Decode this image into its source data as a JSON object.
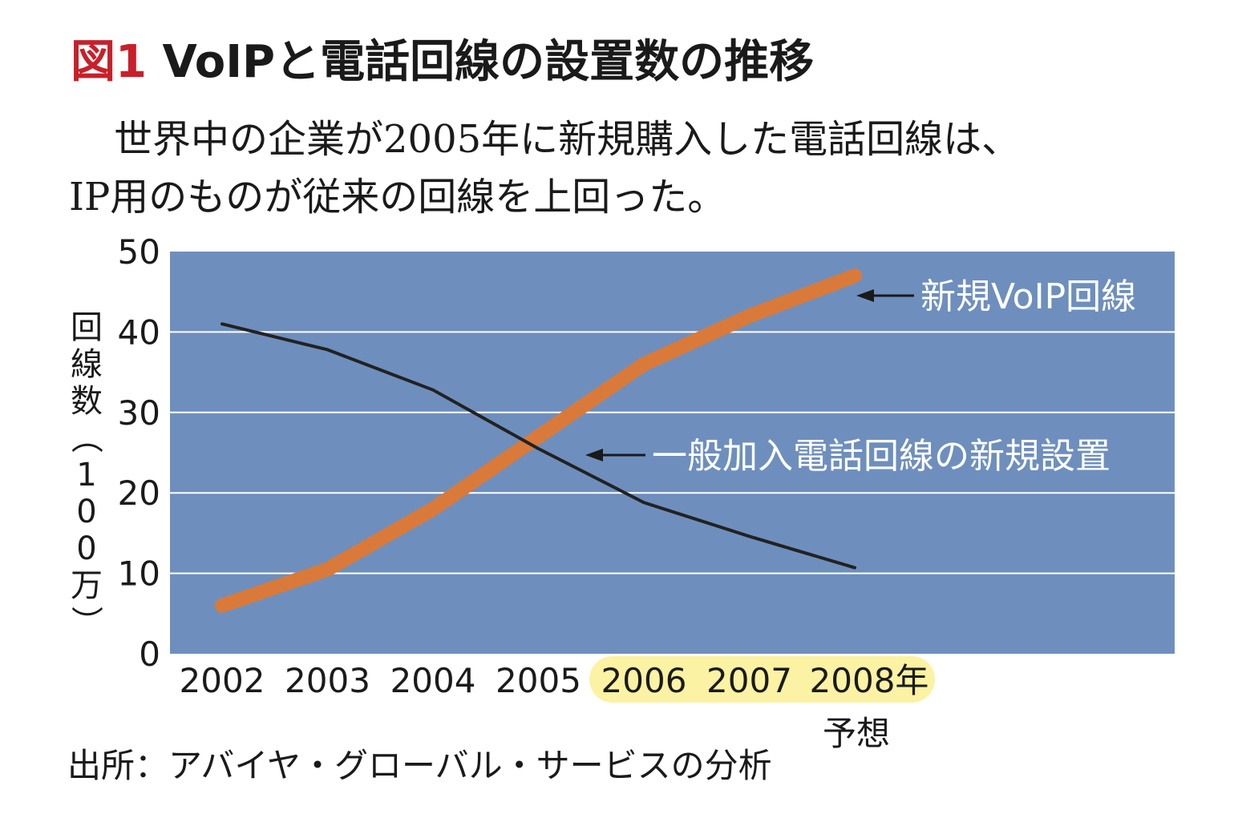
{
  "header": {
    "figure_label": "図1",
    "title": "VoIPと電話回線の設置数の推移",
    "subtitle_line1": "世界中の企業が2005年に新規購入した電話回線は、",
    "subtitle_line2": "IP用のものが従来の回線を上回った。"
  },
  "source": "出所：アバイヤ・グローバル・サービスの分析",
  "chart_data": {
    "type": "line",
    "ylabel": "回線数（100万）",
    "ylim": [
      0,
      50
    ],
    "yticks": [
      "0",
      "10",
      "20",
      "30",
      "40",
      "50"
    ],
    "x": [
      "2002",
      "2003",
      "2004",
      "2005",
      "2006",
      "2007",
      "2008年"
    ],
    "forecast_note": "予想",
    "forecast_years": [
      "2006",
      "2007",
      "2008年"
    ],
    "grid": true,
    "series": [
      {
        "name": "新規VoIP回線",
        "values": [
          6,
          10.5,
          18,
          27,
          36,
          42,
          47
        ],
        "color": "#d97a3a"
      },
      {
        "name": "一般加入電話回線の新規設置",
        "values": [
          41,
          37.8,
          32.8,
          25.5,
          18.8,
          14.6,
          10.7
        ],
        "color": "#222222"
      }
    ],
    "plot_background": "#6e8fbd",
    "forecast_highlight": "#fbf2a3"
  }
}
